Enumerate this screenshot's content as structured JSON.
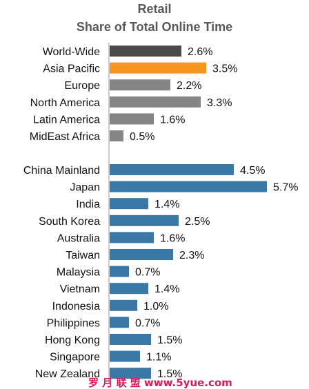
{
  "chart_data": {
    "type": "bar",
    "orientation": "horizontal",
    "title": "Retail",
    "subtitle": "Share of Total Online Time",
    "value_suffix": "%",
    "xlim": [
      0,
      6
    ],
    "grid": false,
    "groups": [
      {
        "categories": [
          "World-Wide",
          "Asia Pacific",
          "Europe",
          "North America",
          "Latin America",
          "MidEast Africa"
        ],
        "values": [
          2.6,
          3.5,
          2.2,
          3.3,
          1.6,
          0.5
        ],
        "value_labels": [
          "2.6%",
          "3.5%",
          "2.2%",
          "3.3%",
          "1.6%",
          "0.5%"
        ],
        "colors": [
          "#4a4a4a",
          "#f79521",
          "#858585",
          "#858585",
          "#858585",
          "#858585"
        ]
      },
      {
        "categories": [
          "China Mainland",
          "Japan",
          "India",
          "South Korea",
          "Australia",
          "Taiwan",
          "Malaysia",
          "Vietnam",
          "Indonesia",
          "Philippines",
          "Hong Kong",
          "Singapore",
          "New Zealand"
        ],
        "values": [
          4.5,
          5.7,
          1.4,
          2.5,
          1.6,
          2.3,
          0.7,
          1.4,
          1.0,
          0.7,
          1.5,
          1.1,
          1.5
        ],
        "value_labels": [
          "4.5%",
          "5.7%",
          "1.4%",
          "2.5%",
          "1.6%",
          "2.3%",
          "0.7%",
          "1.4%",
          "1.0%",
          "0.7%",
          "1.5%",
          "1.1%",
          "1.5%"
        ],
        "colors": [
          "#3a78a8"
        ]
      }
    ]
  },
  "watermark": {
    "text": "罗 月 联 盟  www.5yue.com",
    "color": "#e0185a"
  }
}
